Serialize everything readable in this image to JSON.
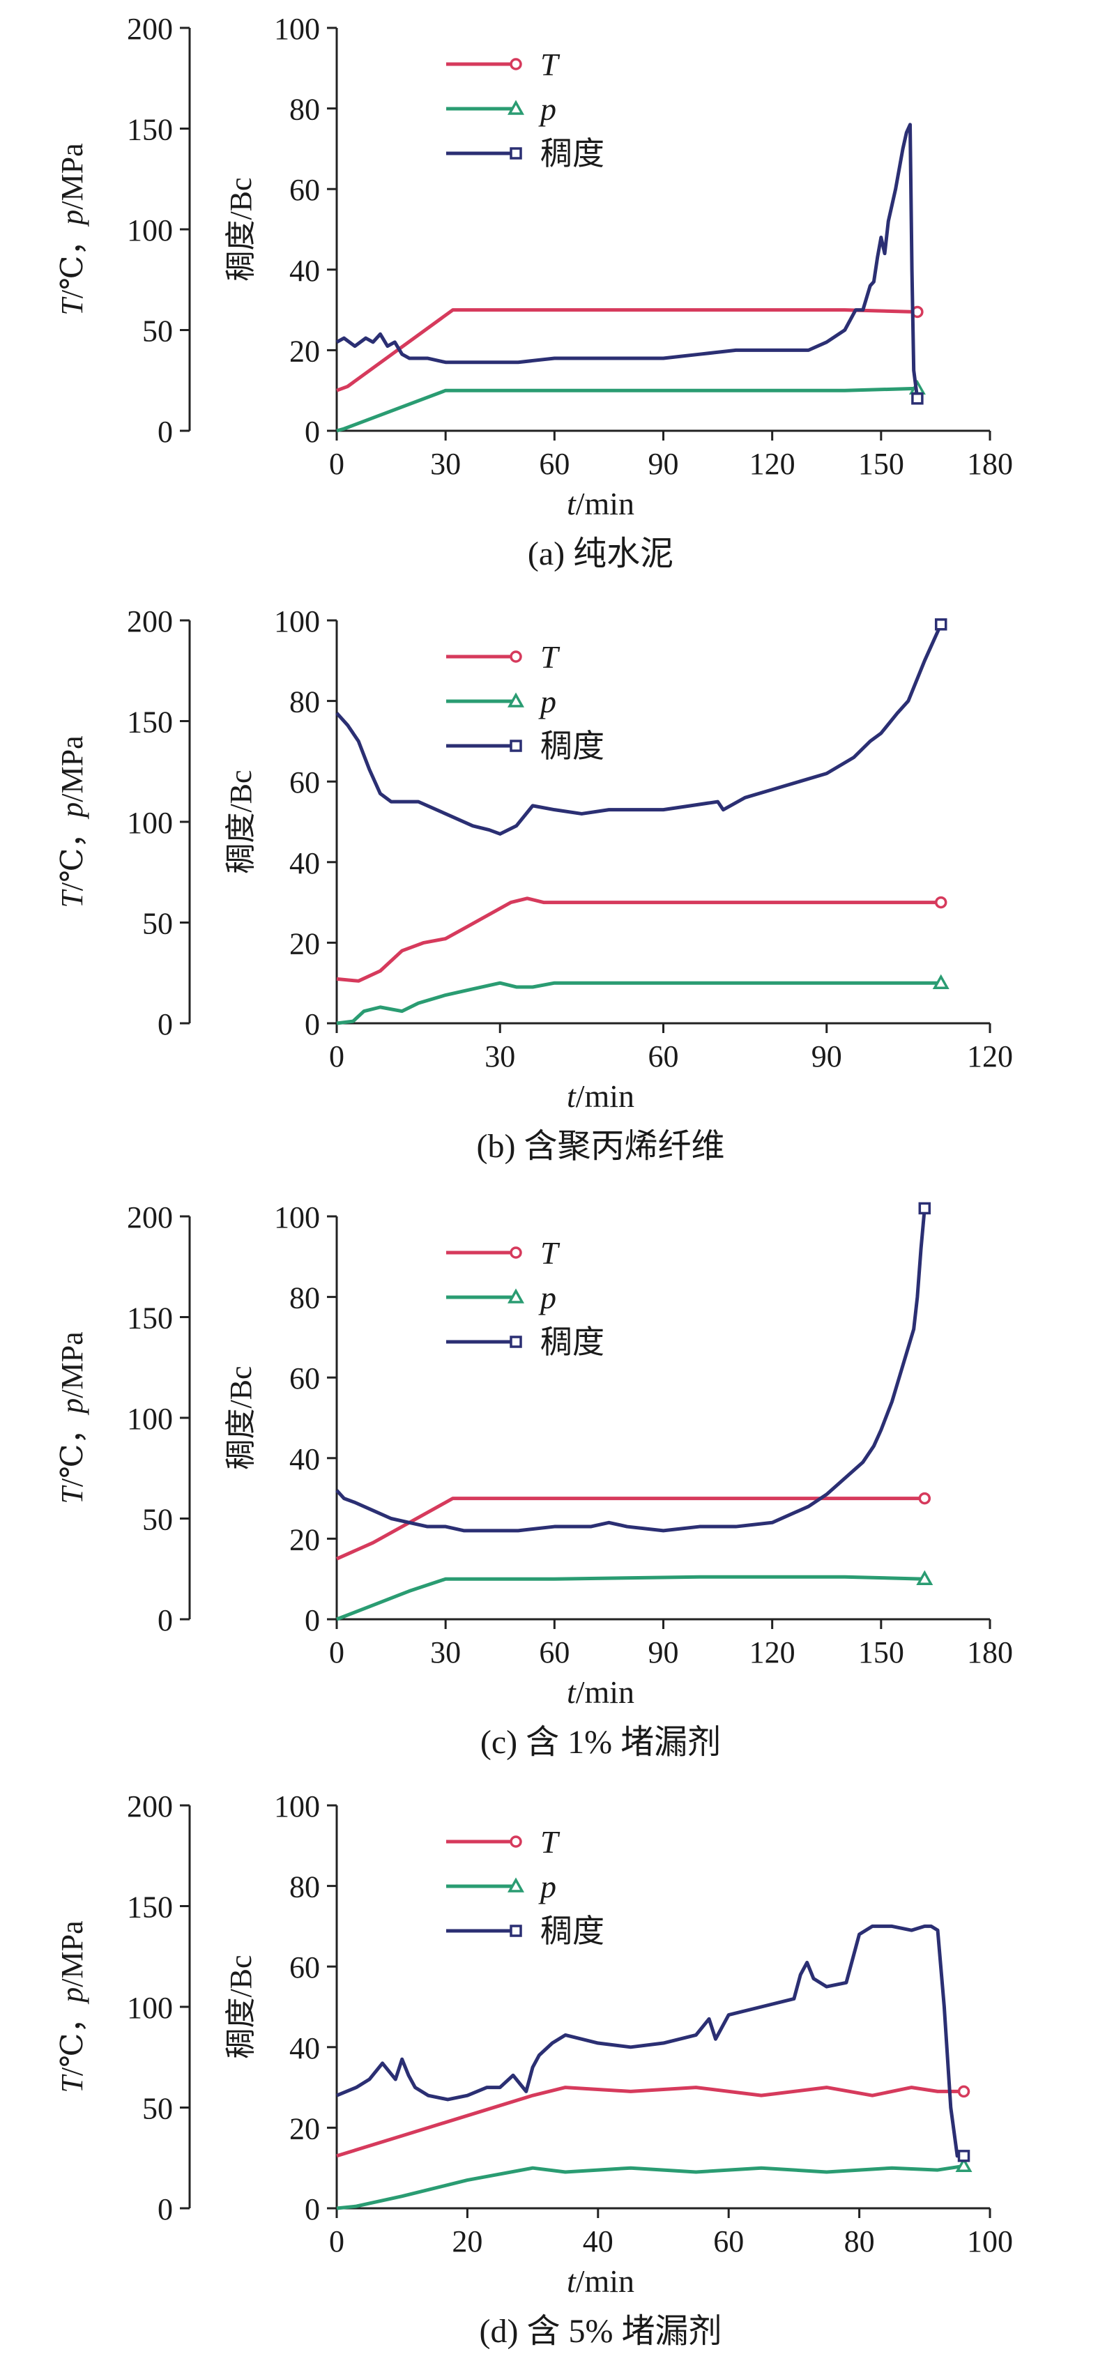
{
  "chart_data": [
    {
      "type": "line",
      "caption": "(a) 纯水泥",
      "xlabel_italic": "t",
      "xlabel_unit": "/min",
      "ylabel_left": {
        "v1": "T",
        "unit1": "/℃，",
        "v2": "p",
        "unit2": "/MPa"
      },
      "ylabel_right": "稠度/Bc",
      "x_ticks": [
        0,
        30,
        60,
        90,
        120,
        150,
        180
      ],
      "xlim": [
        0,
        180
      ],
      "y_left_ticks": [
        0,
        50,
        100,
        150,
        200
      ],
      "y_right_ticks": [
        0,
        20,
        40,
        60,
        80,
        100
      ],
      "ylim_right": [
        0,
        100
      ],
      "legend": [
        {
          "label": "T",
          "italic": true,
          "marker": "circle",
          "color": "#d63a5c"
        },
        {
          "label": "p",
          "italic": true,
          "marker": "triangle",
          "color": "#2a9c72"
        },
        {
          "label": "稠度",
          "italic": false,
          "marker": "square",
          "color": "#2b2f73"
        }
      ],
      "series": [
        {
          "name": "T",
          "color": "#d63a5c",
          "marker": "circle",
          "x": [
            0,
            3,
            32,
            60,
            100,
            140,
            160
          ],
          "y": [
            10,
            11,
            30,
            30,
            30,
            30,
            29.5
          ]
        },
        {
          "name": "p",
          "color": "#2a9c72",
          "marker": "triangle",
          "x": [
            0,
            2,
            30,
            60,
            100,
            140,
            160
          ],
          "y": [
            0,
            0.5,
            10,
            10,
            10,
            10,
            10.5
          ]
        },
        {
          "name": "稠度",
          "color": "#2b2f73",
          "marker": "square",
          "x": [
            0,
            2,
            5,
            8,
            10,
            12,
            14,
            16,
            18,
            20,
            25,
            30,
            40,
            50,
            60,
            70,
            80,
            90,
            100,
            110,
            120,
            130,
            135,
            140,
            143,
            145,
            147,
            148,
            149,
            150,
            151,
            152,
            153,
            154,
            155,
            156,
            157,
            158,
            158.5,
            159,
            160
          ],
          "y": [
            22,
            23,
            21,
            23,
            22,
            24,
            21,
            22,
            19,
            18,
            18,
            17,
            17,
            17,
            18,
            18,
            18,
            18,
            19,
            20,
            20,
            20,
            22,
            25,
            30,
            30,
            36,
            37,
            43,
            48,
            44,
            52,
            56,
            60,
            65,
            70,
            74,
            76,
            40,
            15,
            8
          ]
        }
      ]
    },
    {
      "type": "line",
      "caption": "(b) 含聚丙烯纤维",
      "xlabel_italic": "t",
      "xlabel_unit": "/min",
      "ylabel_left": {
        "v1": "T",
        "unit1": "/℃，",
        "v2": "p",
        "unit2": "/MPa"
      },
      "ylabel_right": "稠度/Bc",
      "x_ticks": [
        0,
        30,
        60,
        90,
        120
      ],
      "xlim": [
        0,
        120
      ],
      "y_left_ticks": [
        0,
        50,
        100,
        150,
        200
      ],
      "y_right_ticks": [
        0,
        20,
        40,
        60,
        80,
        100
      ],
      "ylim_right": [
        0,
        100
      ],
      "legend": [
        {
          "label": "T",
          "italic": true,
          "marker": "circle",
          "color": "#d63a5c"
        },
        {
          "label": "p",
          "italic": true,
          "marker": "triangle",
          "color": "#2a9c72"
        },
        {
          "label": "稠度",
          "italic": false,
          "marker": "square",
          "color": "#2b2f73"
        }
      ],
      "series": [
        {
          "name": "T",
          "color": "#d63a5c",
          "marker": "circle",
          "x": [
            0,
            4,
            8,
            12,
            16,
            20,
            24,
            28,
            32,
            35,
            38,
            45,
            60,
            80,
            100,
            111
          ],
          "y": [
            11,
            10.5,
            13,
            18,
            20,
            21,
            24,
            27,
            30,
            31,
            30,
            30,
            30,
            30,
            30,
            30
          ]
        },
        {
          "name": "p",
          "color": "#2a9c72",
          "marker": "triangle",
          "x": [
            0,
            3,
            5,
            8,
            12,
            15,
            20,
            25,
            30,
            33,
            36,
            40,
            60,
            80,
            100,
            111
          ],
          "y": [
            0,
            0.5,
            3,
            4,
            3,
            5,
            7,
            8.5,
            10,
            9,
            9,
            10,
            10,
            10,
            10,
            10
          ]
        },
        {
          "name": "稠度",
          "color": "#2b2f73",
          "marker": "square",
          "x": [
            0,
            2,
            4,
            6,
            8,
            10,
            15,
            20,
            25,
            28,
            30,
            33,
            36,
            40,
            45,
            50,
            55,
            60,
            65,
            70,
            71,
            75,
            80,
            85,
            90,
            95,
            98,
            100,
            103,
            105,
            108,
            111
          ],
          "y": [
            77,
            74,
            70,
            63,
            57,
            55,
            55,
            52,
            49,
            48,
            47,
            49,
            54,
            53,
            52,
            53,
            53,
            53,
            54,
            55,
            53,
            56,
            58,
            60,
            62,
            66,
            70,
            72,
            77,
            80,
            90,
            99
          ]
        }
      ]
    },
    {
      "type": "line",
      "caption": "(c) 含 1% 堵漏剂",
      "xlabel_italic": "t",
      "xlabel_unit": "/min",
      "ylabel_left": {
        "v1": "T",
        "unit1": "/℃，",
        "v2": "p",
        "unit2": "/MPa"
      },
      "ylabel_right": "稠度/Bc",
      "x_ticks": [
        0,
        30,
        60,
        90,
        120,
        150,
        180
      ],
      "xlim": [
        0,
        180
      ],
      "y_left_ticks": [
        0,
        50,
        100,
        150,
        200
      ],
      "y_right_ticks": [
        0,
        20,
        40,
        60,
        80,
        100
      ],
      "ylim_right": [
        0,
        100
      ],
      "legend": [
        {
          "label": "T",
          "italic": true,
          "marker": "circle",
          "color": "#d63a5c"
        },
        {
          "label": "p",
          "italic": true,
          "marker": "triangle",
          "color": "#2a9c72"
        },
        {
          "label": "稠度",
          "italic": false,
          "marker": "square",
          "color": "#2b2f73"
        }
      ],
      "series": [
        {
          "name": "T",
          "color": "#d63a5c",
          "marker": "circle",
          "x": [
            0,
            10,
            20,
            32,
            60,
            100,
            140,
            162
          ],
          "y": [
            15,
            19,
            24,
            30,
            30,
            30,
            30,
            30
          ]
        },
        {
          "name": "p",
          "color": "#2a9c72",
          "marker": "triangle",
          "x": [
            0,
            10,
            20,
            30,
            60,
            100,
            140,
            162
          ],
          "y": [
            0,
            3.5,
            7,
            10,
            10,
            10.5,
            10.5,
            10
          ]
        },
        {
          "name": "稠度",
          "color": "#2b2f73",
          "marker": "square",
          "x": [
            0,
            2,
            5,
            10,
            15,
            20,
            25,
            30,
            35,
            40,
            50,
            60,
            70,
            75,
            80,
            90,
            100,
            110,
            120,
            125,
            130,
            135,
            140,
            145,
            148,
            150,
            153,
            155,
            157,
            159,
            160,
            161,
            162
          ],
          "y": [
            32,
            30,
            29,
            27,
            25,
            24,
            23,
            23,
            22,
            22,
            22,
            23,
            23,
            24,
            23,
            22,
            23,
            23,
            24,
            26,
            28,
            31,
            35,
            39,
            43,
            47,
            54,
            60,
            66,
            72,
            80,
            92,
            102
          ]
        }
      ]
    },
    {
      "type": "line",
      "caption": "(d) 含 5% 堵漏剂",
      "xlabel_italic": "t",
      "xlabel_unit": "/min",
      "ylabel_left": {
        "v1": "T",
        "unit1": "/℃，",
        "v2": "p",
        "unit2": "/MPa"
      },
      "ylabel_right": "稠度/Bc",
      "x_ticks": [
        0,
        20,
        40,
        60,
        80,
        100
      ],
      "xlim": [
        0,
        100
      ],
      "y_left_ticks": [
        0,
        50,
        100,
        150,
        200
      ],
      "y_right_ticks": [
        0,
        20,
        40,
        60,
        80,
        100
      ],
      "ylim_right": [
        0,
        100
      ],
      "legend": [
        {
          "label": "T",
          "italic": true,
          "marker": "circle",
          "color": "#d63a5c"
        },
        {
          "label": "p",
          "italic": true,
          "marker": "triangle",
          "color": "#2a9c72"
        },
        {
          "label": "稠度",
          "italic": false,
          "marker": "square",
          "color": "#2b2f73"
        }
      ],
      "series": [
        {
          "name": "T",
          "color": "#d63a5c",
          "marker": "circle",
          "x": [
            0,
            10,
            20,
            30,
            35,
            45,
            55,
            65,
            75,
            82,
            88,
            92,
            96
          ],
          "y": [
            13,
            18,
            23,
            28,
            30,
            29,
            30,
            28,
            30,
            28,
            30,
            29,
            29
          ]
        },
        {
          "name": "p",
          "color": "#2a9c72",
          "marker": "triangle",
          "x": [
            0,
            3,
            10,
            20,
            30,
            35,
            45,
            55,
            65,
            75,
            85,
            92,
            96
          ],
          "y": [
            0,
            0.5,
            3,
            7,
            10,
            9,
            10,
            9,
            10,
            9,
            10,
            9.5,
            10.5
          ]
        },
        {
          "name": "稠度",
          "color": "#2b2f73",
          "marker": "square",
          "x": [
            0,
            3,
            5,
            7,
            9,
            10,
            11,
            12,
            14,
            17,
            20,
            23,
            25,
            27,
            29,
            30,
            31,
            33,
            35,
            40,
            45,
            50,
            55,
            57,
            58,
            60,
            65,
            70,
            71,
            72,
            73,
            75,
            78,
            80,
            82,
            85,
            88,
            90,
            91,
            92,
            93,
            94,
            95,
            96
          ],
          "y": [
            28,
            30,
            32,
            36,
            32,
            37,
            33,
            30,
            28,
            27,
            28,
            30,
            30,
            33,
            29,
            35,
            38,
            41,
            43,
            41,
            40,
            41,
            43,
            47,
            42,
            48,
            50,
            52,
            58,
            61,
            57,
            55,
            56,
            68,
            70,
            70,
            69,
            70,
            70,
            69,
            50,
            25,
            13,
            13
          ]
        }
      ]
    }
  ]
}
